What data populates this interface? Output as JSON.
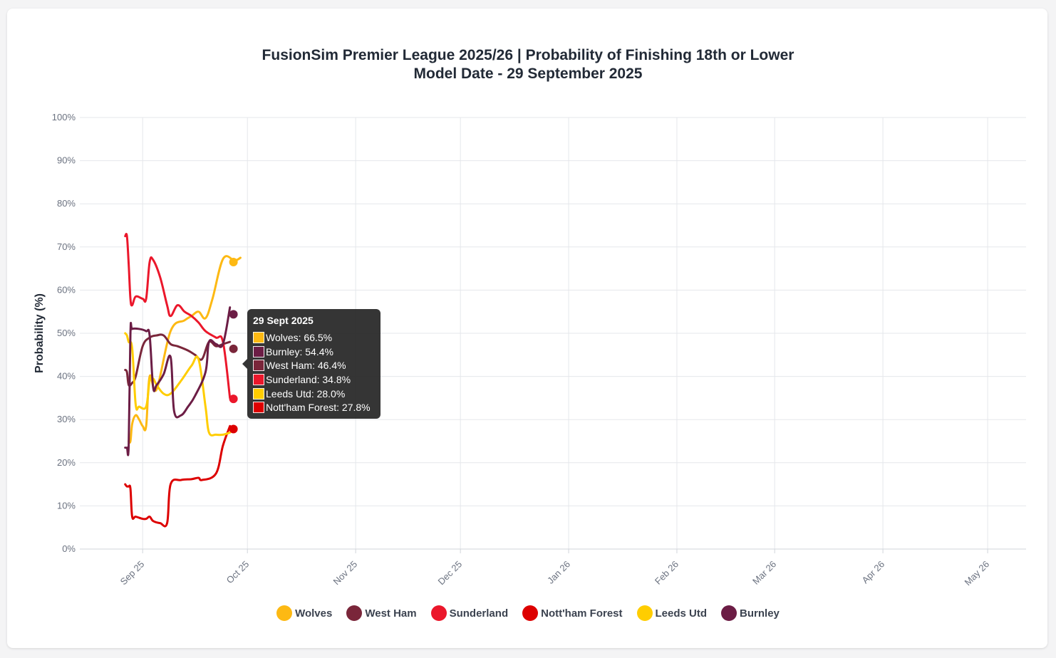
{
  "colors": {
    "Wolves": "#FDB913",
    "West Ham": "#7A263A",
    "Sunderland": "#EB172B",
    "Nott'ham Forest": "#DD0000",
    "Leeds Utd": "#FFCD00",
    "Burnley": "#6C1D45"
  },
  "chart_data": {
    "type": "line",
    "title": "FusionSim Premier League 2025/26 | Probability of Finishing 18th or Lower",
    "subtitle": "Model Date - 29 September 2025",
    "ylabel": "Probability (%)",
    "xlabel": "",
    "ylim": [
      0,
      100
    ],
    "xlim_days": [
      -11,
      260
    ],
    "yticks": [
      "0%",
      "10%",
      "20%",
      "30%",
      "40%",
      "50%",
      "60%",
      "70%",
      "80%",
      "90%",
      "100%"
    ],
    "xticks": [
      {
        "label": "Sep 25",
        "day": 7
      },
      {
        "label": "Oct 25",
        "day": 37
      },
      {
        "label": "Nov 25",
        "day": 68
      },
      {
        "label": "Dec 25",
        "day": 98
      },
      {
        "label": "Jan 26",
        "day": 129
      },
      {
        "label": "Feb 26",
        "day": 160
      },
      {
        "label": "Mar 26",
        "day": 188
      },
      {
        "label": "Apr 26",
        "day": 219
      },
      {
        "label": "May 26",
        "day": 249
      }
    ],
    "x_axis_note": "day 0 = 1 Sept 2025",
    "series": [
      {
        "name": "Wolves",
        "x": [
          3,
          3.5,
          4,
          5,
          6,
          7,
          8,
          9,
          11,
          15,
          19,
          21,
          23,
          25,
          27,
          30,
          33,
          34,
          35
        ],
        "y": [
          25,
          25,
          29,
          31,
          30,
          28.5,
          28.5,
          40,
          37,
          50.5,
          53,
          54,
          55,
          53.5,
          58,
          67.2,
          67,
          67,
          67.5
        ]
      },
      {
        "name": "West Ham",
        "x": [
          2,
          2.5,
          3,
          4,
          5,
          7,
          9,
          11,
          13,
          15,
          17,
          20,
          22,
          24,
          26,
          28,
          30,
          32
        ],
        "y": [
          41.5,
          41,
          38,
          38.5,
          40,
          47,
          49,
          49.5,
          49.5,
          47.5,
          47,
          46,
          45,
          44,
          48,
          47,
          47.5,
          48
        ]
      },
      {
        "name": "Sunderland",
        "x": [
          2,
          2.5,
          3,
          3.5,
          4,
          5,
          7,
          8,
          9,
          10,
          12,
          14,
          15,
          17,
          19,
          21,
          23,
          25,
          28,
          30,
          32
        ],
        "y": [
          72.5,
          72.5,
          66,
          58,
          56.5,
          58.5,
          58,
          58,
          66.5,
          67,
          63,
          56.5,
          54,
          56.5,
          55,
          54,
          52.5,
          50.5,
          49,
          48,
          35
        ]
      },
      {
        "name": "Nott'ham Forest",
        "x": [
          2,
          2.5,
          3,
          3.5,
          4,
          5,
          7,
          8,
          9,
          10,
          12,
          14,
          15,
          18,
          21,
          23,
          24,
          28,
          30,
          32
        ],
        "y": [
          15,
          14.5,
          14.5,
          14,
          7.5,
          7.5,
          7,
          7,
          7.5,
          6.5,
          6,
          6,
          15,
          16,
          16.2,
          16.5,
          16,
          17.5,
          24,
          28.5
        ]
      },
      {
        "name": "Leeds Utd",
        "x": [
          2,
          2.5,
          3,
          4,
          5,
          6,
          8,
          9,
          10,
          11,
          13,
          15,
          18,
          21,
          23,
          25,
          26,
          28,
          30,
          32
        ],
        "y": [
          50,
          49.5,
          48,
          46.5,
          33.5,
          33,
          33,
          39,
          39.5,
          38,
          36,
          36,
          39,
          42.5,
          44,
          33,
          27,
          26.5,
          26.5,
          27
        ]
      },
      {
        "name": "Burnley",
        "x": [
          2,
          2.5,
          3,
          3.5,
          4,
          6,
          8,
          9,
          10,
          11,
          13,
          15,
          16,
          18,
          20,
          22,
          25,
          26,
          28,
          30,
          32
        ],
        "y": [
          23.5,
          23.5,
          24,
          50,
          51,
          51,
          50.5,
          49.5,
          37.5,
          38,
          40.5,
          44.5,
          32,
          31,
          33,
          35.5,
          41,
          48,
          47.5,
          47.5,
          56
        ]
      }
    ],
    "endpoints": [
      {
        "name": "Wolves",
        "day": 33,
        "value": 66.5
      },
      {
        "name": "Burnley",
        "day": 33,
        "value": 54.4
      },
      {
        "name": "West Ham",
        "day": 33,
        "value": 46.4
      },
      {
        "name": "Sunderland",
        "day": 33,
        "value": 34.8
      },
      {
        "name": "Nott'ham Forest",
        "day": 33,
        "value": 27.8
      }
    ]
  },
  "tooltip": {
    "title": "29 Sept 2025",
    "rows": [
      {
        "team": "Wolves",
        "text": "Wolves: 66.5%"
      },
      {
        "team": "Burnley",
        "text": "Burnley: 54.4%"
      },
      {
        "team": "West Ham",
        "text": "West Ham: 46.4%"
      },
      {
        "team": "Sunderland",
        "text": "Sunderland: 34.8%"
      },
      {
        "team": "Leeds Utd",
        "text": "Leeds Utd: 28.0%"
      },
      {
        "team": "Nott'ham Forest",
        "text": "Nott'ham Forest: 27.8%"
      }
    ]
  },
  "legend": [
    "Wolves",
    "West Ham",
    "Sunderland",
    "Nott'ham Forest",
    "Leeds Utd",
    "Burnley"
  ]
}
